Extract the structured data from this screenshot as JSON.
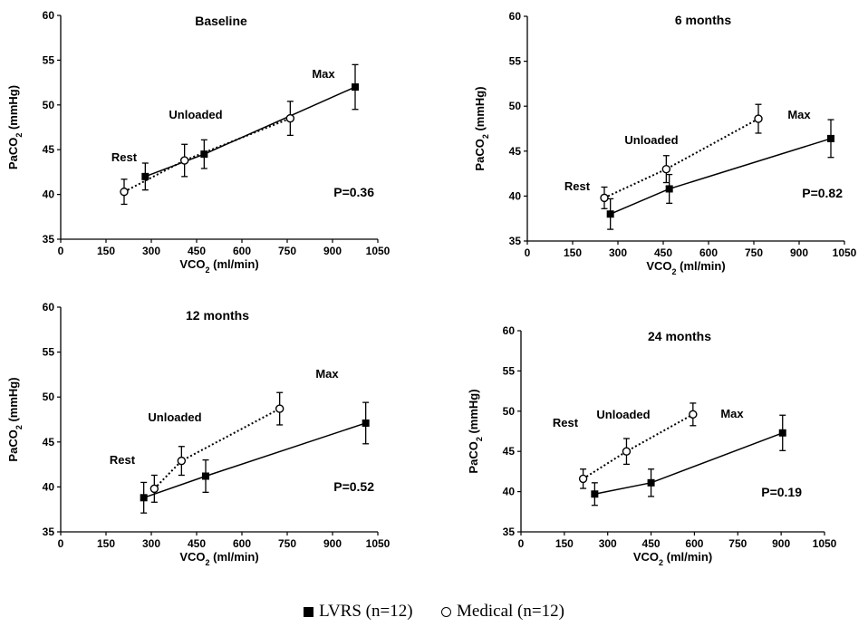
{
  "legend": {
    "lvrs_label": "LVRS (n=12)",
    "medical_label": "Medical (n=12)"
  },
  "chart_data": [
    {
      "type": "line",
      "title": "Baseline",
      "xlabel": "VCO2 (ml/min)",
      "ylabel": "PaCO2 (mmHg)",
      "xlim": [
        0,
        1050
      ],
      "ylim": [
        35,
        60
      ],
      "xticks": [
        0,
        150,
        300,
        450,
        600,
        750,
        900,
        1050
      ],
      "yticks": [
        35,
        40,
        45,
        50,
        55,
        60
      ],
      "annotations": [
        "Rest",
        "Unloaded",
        "Max"
      ],
      "p_value": "P=0.36",
      "series": [
        {
          "name": "LVRS (n=12)",
          "marker": "square",
          "line": "solid",
          "points": [
            {
              "x": 280,
              "y": 42.0,
              "err": 1.5
            },
            {
              "x": 475,
              "y": 44.5,
              "err": 1.6
            },
            {
              "x": 975,
              "y": 52.0,
              "err": 2.5
            }
          ]
        },
        {
          "name": "Medical (n=12)",
          "marker": "circle",
          "line": "dotted",
          "points": [
            {
              "x": 210,
              "y": 40.3,
              "err": 1.4
            },
            {
              "x": 410,
              "y": 43.8,
              "err": 1.8
            },
            {
              "x": 760,
              "y": 48.5,
              "err": 1.9
            }
          ]
        }
      ]
    },
    {
      "type": "line",
      "title": "6 months",
      "xlabel": "VCO2 (ml/min)",
      "ylabel": "PaCO2 (mmHg)",
      "xlim": [
        0,
        1050
      ],
      "ylim": [
        35,
        60
      ],
      "xticks": [
        0,
        150,
        300,
        450,
        600,
        750,
        900,
        1050
      ],
      "yticks": [
        35,
        40,
        45,
        50,
        55,
        60
      ],
      "annotations": [
        "Rest",
        "Unloaded",
        "Max"
      ],
      "p_value": "P=0.82",
      "series": [
        {
          "name": "LVRS (n=12)",
          "marker": "square",
          "line": "solid",
          "points": [
            {
              "x": 275,
              "y": 38.0,
              "err": 1.7
            },
            {
              "x": 470,
              "y": 40.8,
              "err": 1.6
            },
            {
              "x": 1005,
              "y": 46.4,
              "err": 2.1
            }
          ]
        },
        {
          "name": "Medical (n=12)",
          "marker": "circle",
          "line": "dotted",
          "points": [
            {
              "x": 255,
              "y": 39.8,
              "err": 1.2
            },
            {
              "x": 460,
              "y": 43.0,
              "err": 1.5
            },
            {
              "x": 765,
              "y": 48.6,
              "err": 1.6
            }
          ]
        }
      ]
    },
    {
      "type": "line",
      "title": "12 months",
      "xlabel": "VCO2 (ml/min)",
      "ylabel": "PaCO2 (mmHg)",
      "xlim": [
        0,
        1050
      ],
      "ylim": [
        35,
        60
      ],
      "xticks": [
        0,
        150,
        300,
        450,
        600,
        750,
        900,
        1050
      ],
      "yticks": [
        35,
        40,
        45,
        50,
        55,
        60
      ],
      "annotations": [
        "Rest",
        "Unloaded",
        "Max"
      ],
      "p_value": "P=0.52",
      "series": [
        {
          "name": "LVRS (n=12)",
          "marker": "square",
          "line": "solid",
          "points": [
            {
              "x": 275,
              "y": 38.8,
              "err": 1.7
            },
            {
              "x": 480,
              "y": 41.2,
              "err": 1.8
            },
            {
              "x": 1010,
              "y": 47.1,
              "err": 2.3
            }
          ]
        },
        {
          "name": "Medical (n=12)",
          "marker": "circle",
          "line": "dotted",
          "points": [
            {
              "x": 310,
              "y": 39.8,
              "err": 1.5
            },
            {
              "x": 400,
              "y": 42.9,
              "err": 1.6
            },
            {
              "x": 725,
              "y": 48.7,
              "err": 1.8
            }
          ]
        }
      ]
    },
    {
      "type": "line",
      "title": "24 months",
      "xlabel": "VCO2 (ml/min)",
      "ylabel": "PaCO2 (mmHg)",
      "xlim": [
        0,
        1050
      ],
      "ylim": [
        35,
        60
      ],
      "xticks": [
        0,
        150,
        300,
        450,
        600,
        750,
        900,
        1050
      ],
      "yticks": [
        35,
        40,
        45,
        50,
        55,
        60
      ],
      "annotations": [
        "Rest",
        "Unloaded",
        "Max"
      ],
      "p_value": "P=0.19",
      "series": [
        {
          "name": "LVRS (n=12)",
          "marker": "square",
          "line": "solid",
          "points": [
            {
              "x": 255,
              "y": 39.7,
              "err": 1.4
            },
            {
              "x": 450,
              "y": 41.1,
              "err": 1.7
            },
            {
              "x": 905,
              "y": 47.3,
              "err": 2.2
            }
          ]
        },
        {
          "name": "Medical (n=12)",
          "marker": "circle",
          "line": "dotted",
          "points": [
            {
              "x": 215,
              "y": 41.6,
              "err": 1.2
            },
            {
              "x": 365,
              "y": 45.0,
              "err": 1.6
            },
            {
              "x": 595,
              "y": 49.6,
              "err": 1.4
            }
          ]
        }
      ]
    }
  ]
}
